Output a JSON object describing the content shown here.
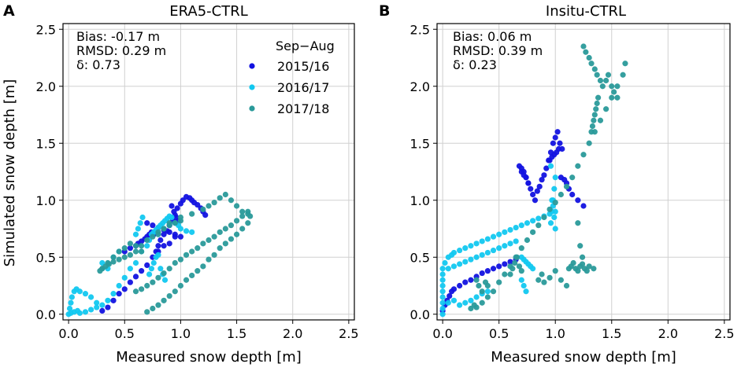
{
  "figure": {
    "ylabel": "Simulated snow depth [m]"
  },
  "legend": {
    "title": "Sep−Aug",
    "entries": [
      {
        "label": "2015/16",
        "color": "#1212e0"
      },
      {
        "label": "2016/17",
        "color": "#12c8f0"
      },
      {
        "label": "2017/18",
        "color": "#2a9a9a"
      }
    ]
  },
  "chart_data": [
    {
      "type": "scatter",
      "panel_letter": "A",
      "title": "ERA5-CTRL",
      "xlabel": "Measured snow depth [m]",
      "ylabel": "Simulated snow depth [m]",
      "xlim": [
        -0.05,
        2.55
      ],
      "ylim": [
        -0.05,
        2.55
      ],
      "xticks": [
        0.0,
        0.5,
        1.0,
        1.5,
        2.0,
        2.5
      ],
      "yticks": [
        0.0,
        0.5,
        1.0,
        1.5,
        2.0,
        2.5
      ],
      "tick_labels": [
        "0.0",
        "0.5",
        "1.0",
        "1.5",
        "2.0",
        "2.5"
      ],
      "grid": true,
      "stats": {
        "bias": "Bias: -0.17 m",
        "rmsd": "RMSD: 0.29 m",
        "delta": "δ: 0.73"
      },
      "series": [
        {
          "name": "2015/16",
          "color": "#1212e0",
          "x": [
            0.3,
            0.35,
            0.4,
            0.45,
            0.5,
            0.55,
            0.6,
            0.65,
            0.7,
            0.75,
            0.8,
            0.85,
            0.9,
            0.95,
            0.78,
            0.8,
            0.82,
            0.85,
            0.88,
            0.9,
            0.93,
            0.95,
            0.97,
            1.0,
            1.02,
            1.05,
            1.08,
            1.1,
            1.12,
            1.15,
            1.18,
            1.2,
            1.22,
            0.5,
            0.55,
            0.6,
            0.62,
            0.65,
            0.68,
            0.7,
            0.72,
            0.74,
            0.76,
            0.7,
            0.75,
            0.8,
            0.85,
            0.9,
            0.95,
            1.0,
            0.92,
            0.94,
            0.96,
            0.98
          ],
          "y": [
            0.03,
            0.06,
            0.12,
            0.18,
            0.22,
            0.28,
            0.33,
            0.38,
            0.43,
            0.5,
            0.55,
            0.6,
            0.62,
            0.68,
            0.55,
            0.6,
            0.65,
            0.7,
            0.73,
            0.78,
            0.82,
            0.87,
            0.93,
            0.97,
            1.0,
            1.03,
            1.02,
            1.0,
            0.98,
            0.96,
            0.93,
            0.9,
            0.87,
            0.55,
            0.58,
            0.6,
            0.62,
            0.64,
            0.66,
            0.68,
            0.7,
            0.72,
            0.7,
            0.8,
            0.78,
            0.76,
            0.74,
            0.72,
            0.7,
            0.68,
            0.95,
            0.9,
            0.85,
            0.82
          ]
        },
        {
          "name": "2016/17",
          "color": "#12c8f0",
          "x": [
            0.0,
            0.01,
            0.02,
            0.03,
            0.05,
            0.07,
            0.1,
            0.15,
            0.2,
            0.25,
            0.02,
            0.05,
            0.08,
            0.1,
            0.15,
            0.2,
            0.25,
            0.3,
            0.35,
            0.4,
            0.45,
            0.5,
            0.55,
            0.6,
            0.65,
            0.7,
            0.72,
            0.74,
            0.76,
            0.78,
            0.8,
            0.82,
            0.84,
            0.86,
            0.88,
            0.9,
            0.92,
            0.95,
            0.98,
            1.0,
            1.05,
            1.1,
            0.72,
            0.74,
            0.76,
            0.78,
            0.8,
            0.82,
            0.84,
            0.86,
            0.6,
            0.62,
            0.64,
            0.66,
            0.3,
            0.35,
            0.4,
            0.45
          ],
          "y": [
            0.0,
            0.05,
            0.1,
            0.15,
            0.2,
            0.22,
            0.2,
            0.18,
            0.15,
            0.1,
            0.01,
            0.02,
            0.03,
            0.01,
            0.02,
            0.04,
            0.06,
            0.08,
            0.12,
            0.18,
            0.25,
            0.32,
            0.4,
            0.45,
            0.55,
            0.6,
            0.65,
            0.7,
            0.72,
            0.74,
            0.76,
            0.78,
            0.8,
            0.82,
            0.84,
            0.86,
            0.85,
            0.8,
            0.78,
            0.75,
            0.73,
            0.72,
            0.35,
            0.4,
            0.45,
            0.5,
            0.52,
            0.4,
            0.35,
            0.3,
            0.7,
            0.75,
            0.8,
            0.85,
            0.45,
            0.4,
            0.5,
            0.55
          ]
        },
        {
          "name": "2017/18",
          "color": "#2a9a9a",
          "x": [
            0.3,
            0.35,
            0.4,
            0.45,
            0.5,
            0.55,
            0.6,
            0.65,
            0.28,
            0.3,
            0.33,
            0.36,
            0.4,
            0.45,
            0.5,
            0.55,
            0.6,
            0.65,
            0.7,
            0.75,
            0.8,
            0.85,
            0.9,
            0.95,
            1.0,
            0.6,
            0.65,
            0.7,
            0.75,
            0.8,
            0.85,
            0.9,
            0.95,
            1.0,
            1.05,
            1.1,
            1.15,
            1.2,
            1.25,
            1.3,
            1.35,
            1.4,
            1.45,
            1.5,
            1.55,
            1.6,
            0.7,
            0.75,
            0.8,
            0.85,
            0.9,
            0.95,
            1.0,
            1.05,
            1.1,
            1.15,
            1.2,
            1.25,
            1.3,
            1.35,
            1.4,
            1.45,
            1.5,
            1.55,
            1.6,
            0.8,
            0.85,
            0.9,
            1.0,
            1.1,
            1.2,
            1.25,
            1.3,
            1.35,
            1.4,
            1.45,
            1.5,
            1.55,
            1.6,
            1.62
          ],
          "y": [
            0.4,
            0.45,
            0.5,
            0.55,
            0.58,
            0.62,
            0.6,
            0.55,
            0.38,
            0.4,
            0.42,
            0.44,
            0.46,
            0.48,
            0.5,
            0.52,
            0.55,
            0.6,
            0.65,
            0.68,
            0.72,
            0.75,
            0.78,
            0.8,
            0.82,
            0.2,
            0.22,
            0.25,
            0.28,
            0.32,
            0.36,
            0.4,
            0.45,
            0.48,
            0.52,
            0.55,
            0.58,
            0.62,
            0.65,
            0.68,
            0.72,
            0.75,
            0.78,
            0.82,
            0.86,
            0.9,
            0.02,
            0.05,
            0.08,
            0.12,
            0.16,
            0.2,
            0.25,
            0.3,
            0.34,
            0.38,
            0.42,
            0.48,
            0.52,
            0.58,
            0.62,
            0.66,
            0.7,
            0.75,
            0.8,
            0.7,
            0.75,
            0.8,
            0.85,
            0.88,
            0.92,
            0.95,
            0.98,
            1.02,
            1.05,
            1.0,
            0.95,
            0.9,
            0.88,
            0.86
          ]
        }
      ]
    },
    {
      "type": "scatter",
      "panel_letter": "B",
      "title": "Insitu-CTRL",
      "xlabel": "Measured snow depth [m]",
      "xlim": [
        -0.05,
        2.55
      ],
      "ylim": [
        -0.05,
        2.55
      ],
      "xticks": [
        0.0,
        0.5,
        1.0,
        1.5,
        2.0,
        2.5
      ],
      "yticks": [
        0.0,
        0.5,
        1.0,
        1.5,
        2.0,
        2.5
      ],
      "tick_labels": [
        "0.0",
        "0.5",
        "1.0",
        "1.5",
        "2.0",
        "2.5"
      ],
      "grid": true,
      "stats": {
        "bias": "Bias: 0.06 m",
        "rmsd": "RMSD: 0.39 m",
        "delta": "δ: 0.23"
      },
      "series": [
        {
          "name": "2015/16",
          "color": "#1212e0",
          "x": [
            0.0,
            0.02,
            0.04,
            0.06,
            0.08,
            0.1,
            0.15,
            0.2,
            0.25,
            0.3,
            0.35,
            0.4,
            0.45,
            0.5,
            0.55,
            0.6,
            0.65,
            0.7,
            0.72,
            0.74,
            0.76,
            0.78,
            0.8,
            0.82,
            0.84,
            0.86,
            0.88,
            0.9,
            0.92,
            0.94,
            0.96,
            0.98,
            1.0,
            1.02,
            1.04,
            1.06,
            0.68,
            0.7,
            0.72,
            0.74,
            0.76,
            1.05,
            1.08,
            1.1,
            1.12,
            1.15,
            1.2,
            1.25,
            0.95,
            0.97,
            0.99,
            1.01,
            1.03
          ],
          "y": [
            0.03,
            0.08,
            0.12,
            0.16,
            0.2,
            0.22,
            0.25,
            0.28,
            0.3,
            0.33,
            0.36,
            0.38,
            0.4,
            0.42,
            0.44,
            0.46,
            0.48,
            1.25,
            1.22,
            1.2,
            1.15,
            1.1,
            1.05,
            1.0,
            1.08,
            1.12,
            1.18,
            1.22,
            1.28,
            1.35,
            1.42,
            1.5,
            1.55,
            1.6,
            1.5,
            1.45,
            1.3,
            1.28,
            1.25,
            1.2,
            1.15,
            1.2,
            1.18,
            1.15,
            1.1,
            1.05,
            1.0,
            0.95,
            1.35,
            1.38,
            1.4,
            1.42,
            1.45
          ]
        },
        {
          "name": "2016/17",
          "color": "#12c8f0",
          "x": [
            0.0,
            0.0,
            0.0,
            0.0,
            0.0,
            0.0,
            0.0,
            0.0,
            0.0,
            0.02,
            0.05,
            0.08,
            0.1,
            0.15,
            0.2,
            0.25,
            0.3,
            0.35,
            0.4,
            0.45,
            0.5,
            0.55,
            0.6,
            0.65,
            0.7,
            0.75,
            0.8,
            0.85,
            0.9,
            0.95,
            1.0,
            0.05,
            0.1,
            0.15,
            0.2,
            0.25,
            0.3,
            0.35,
            0.4,
            0.45,
            0.5,
            0.55,
            0.6,
            0.65,
            0.7,
            0.72,
            0.74,
            0.76,
            0.78,
            0.8,
            0.7,
            0.72,
            0.74,
            0.96,
            0.97,
            0.98,
            0.99,
            1.0,
            0.96,
            0.97,
            0.98,
            0.99,
            1.0,
            0.2,
            0.25,
            0.3,
            0.35,
            0.4,
            0.05,
            0.1,
            0.15
          ],
          "y": [
            0.0,
            0.05,
            0.1,
            0.15,
            0.2,
            0.25,
            0.3,
            0.35,
            0.4,
            0.45,
            0.5,
            0.52,
            0.54,
            0.56,
            0.58,
            0.6,
            0.62,
            0.64,
            0.66,
            0.68,
            0.7,
            0.72,
            0.74,
            0.76,
            0.78,
            0.8,
            0.82,
            0.84,
            0.86,
            0.88,
            0.9,
            0.4,
            0.42,
            0.44,
            0.46,
            0.48,
            0.5,
            0.52,
            0.54,
            0.56,
            0.58,
            0.6,
            0.62,
            0.64,
            0.5,
            0.48,
            0.46,
            0.44,
            0.42,
            0.4,
            0.3,
            0.25,
            0.2,
            0.8,
            0.9,
            1.0,
            1.1,
            1.2,
            1.3,
            1.0,
            0.95,
            0.85,
            0.75,
            0.1,
            0.12,
            0.15,
            0.18,
            0.2,
            0.1,
            0.12,
            0.08
          ]
        },
        {
          "name": "2017/18",
          "color": "#2a9a9a",
          "x": [
            0.25,
            0.28,
            0.3,
            0.35,
            0.4,
            0.45,
            0.5,
            0.55,
            0.6,
            0.65,
            0.7,
            0.75,
            0.8,
            0.85,
            0.9,
            0.95,
            1.0,
            1.05,
            1.1,
            1.15,
            1.2,
            1.25,
            1.3,
            1.35,
            1.4,
            1.45,
            1.5,
            1.55,
            1.6,
            1.62,
            1.25,
            1.27,
            1.3,
            1.32,
            1.35,
            1.37,
            1.4,
            1.42,
            1.45,
            1.47,
            1.5,
            1.52,
            1.55,
            1.32,
            1.33,
            1.34,
            1.35,
            1.36,
            1.37,
            1.38,
            1.12,
            1.14,
            1.16,
            1.18,
            1.2,
            1.22,
            1.24,
            1.26,
            1.28,
            1.3,
            1.34,
            0.85,
            0.88,
            0.9,
            0.95,
            1.0,
            1.05,
            1.1,
            0.3,
            0.32,
            0.35,
            0.38,
            0.4,
            0.6,
            0.62,
            0.64,
            0.66,
            0.68,
            0.7,
            1.2,
            1.22,
            1.24
          ],
          "y": [
            0.05,
            0.08,
            0.06,
            0.1,
            0.15,
            0.2,
            0.28,
            0.35,
            0.42,
            0.5,
            0.58,
            0.65,
            0.72,
            0.78,
            0.85,
            0.92,
            0.98,
            1.05,
            1.12,
            1.2,
            1.3,
            1.4,
            1.5,
            1.6,
            1.7,
            1.8,
            1.9,
            2.0,
            2.1,
            2.2,
            2.35,
            2.3,
            2.25,
            2.2,
            2.15,
            2.1,
            2.05,
            2.0,
            2.05,
            2.1,
            2.0,
            1.95,
            1.9,
            1.6,
            1.65,
            1.7,
            1.75,
            1.8,
            1.85,
            1.9,
            0.4,
            0.42,
            0.45,
            0.4,
            0.38,
            0.42,
            0.44,
            0.4,
            0.38,
            0.42,
            0.4,
            0.3,
            0.35,
            0.28,
            0.32,
            0.38,
            0.3,
            0.25,
            0.3,
            0.25,
            0.2,
            0.28,
            0.25,
            0.35,
            0.4,
            0.45,
            0.5,
            0.42,
            0.38,
            0.8,
            0.6,
            0.5
          ]
        }
      ]
    }
  ]
}
